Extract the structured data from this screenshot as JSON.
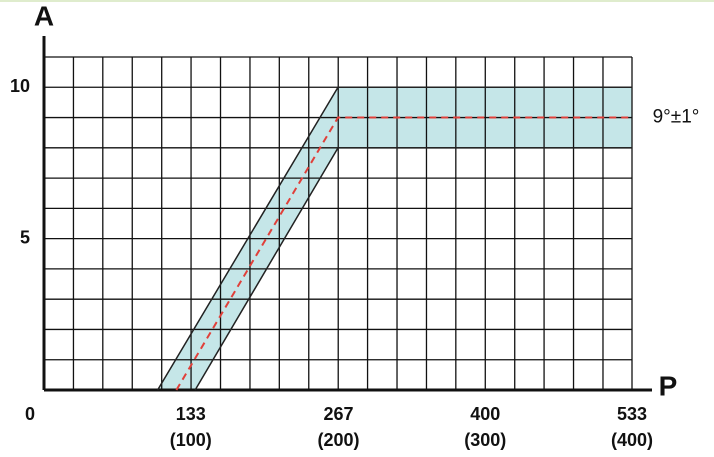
{
  "chart_data": {
    "type": "band",
    "x_axis_label": "P",
    "y_axis_label": "A",
    "annotation": "9°±1°",
    "xlim": [
      0,
      533
    ],
    "ylim": [
      0,
      11
    ],
    "xticks": [
      0,
      133,
      267,
      400,
      533
    ],
    "xtick_sublabels": [
      null,
      "(100)",
      "(200)",
      "(300)",
      "(400)"
    ],
    "yticks": [
      5,
      10
    ],
    "xgrid": [
      0,
      26.7,
      53.3,
      80,
      106.7,
      133.3,
      160,
      186.7,
      213.3,
      240,
      266.7,
      293.3,
      320,
      346.7,
      373.3,
      400,
      426.7,
      453.3,
      480,
      506.7,
      533
    ],
    "ygrid": [
      0,
      1,
      2,
      3,
      4,
      5,
      6,
      7,
      8,
      9,
      10,
      11
    ],
    "band_color": "#c5e6e8",
    "series": [
      {
        "x": [
          103,
          266.5,
          533
        ],
        "values": [
          0,
          10,
          10
        ],
        "color": "#222222",
        "dashed": false
      },
      {
        "x": [
          137,
          266.5,
          533
        ],
        "values": [
          0,
          8,
          8
        ],
        "color": "#222222",
        "dashed": false
      },
      {
        "x": [
          120,
          266.5,
          533
        ],
        "values": [
          0,
          9,
          9
        ],
        "color": "#e0403a",
        "dashed": true
      }
    ]
  }
}
